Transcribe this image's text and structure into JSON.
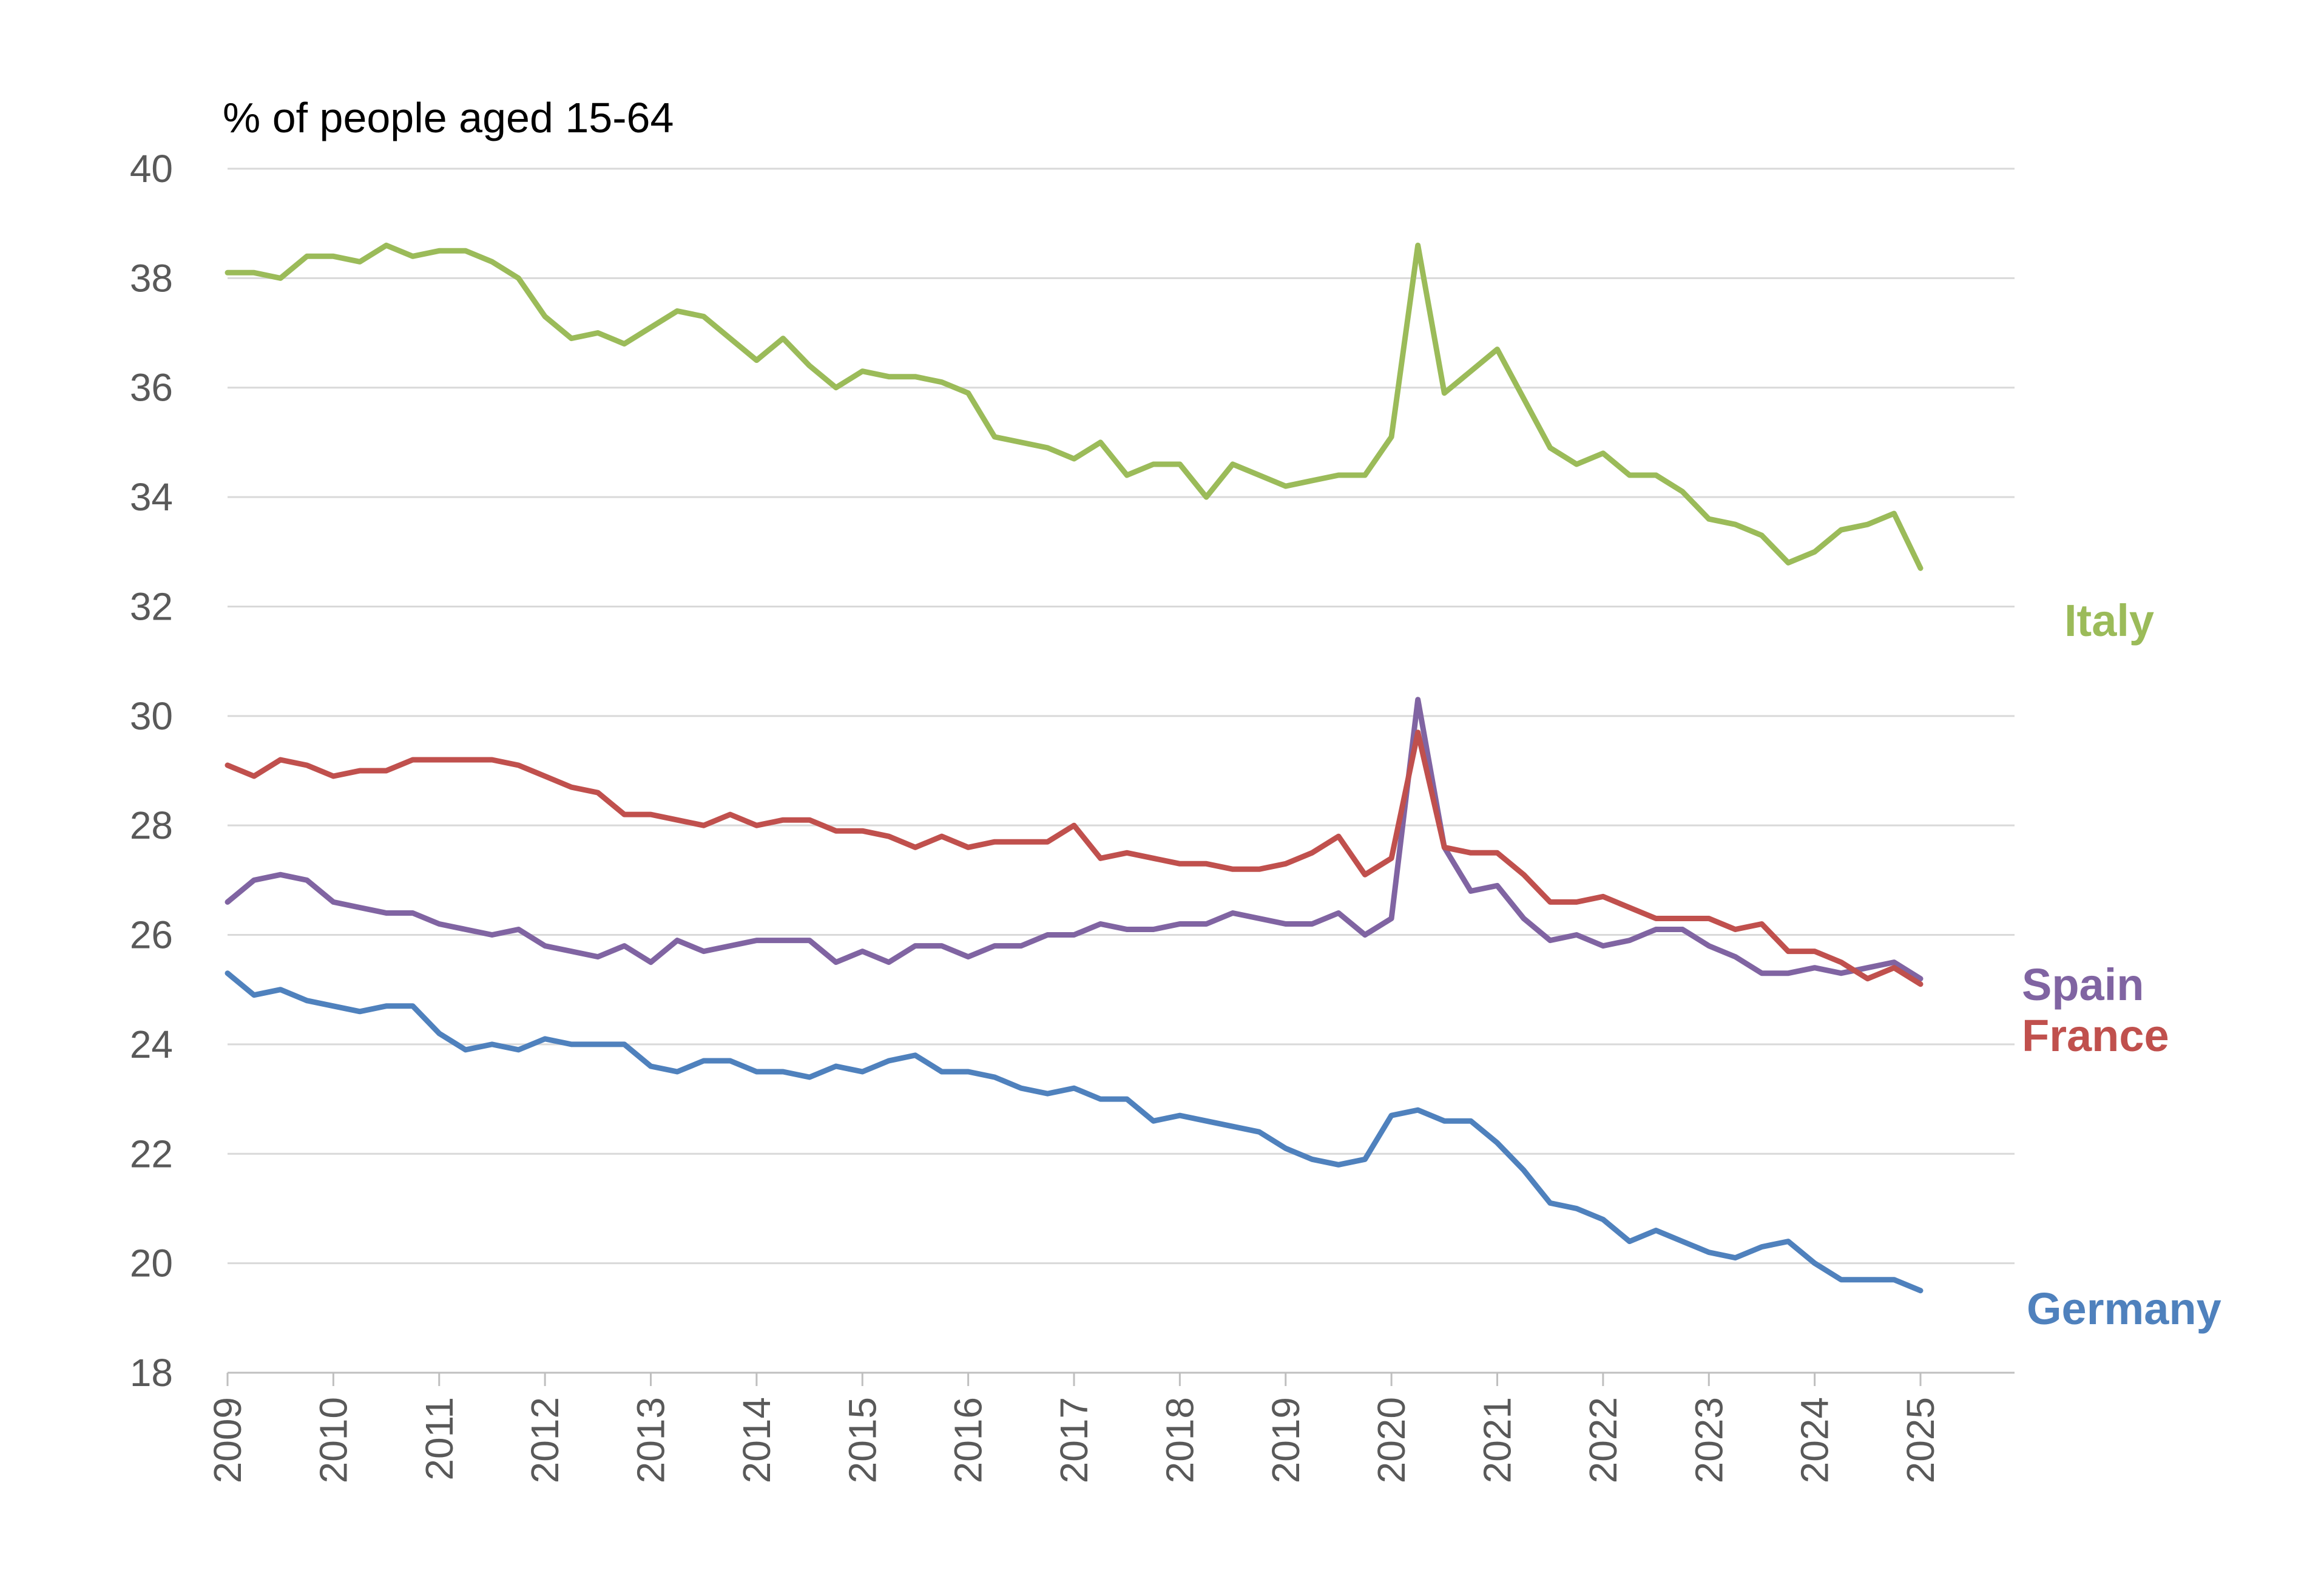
{
  "chart_data": {
    "type": "line",
    "title": "",
    "ylabel": "% of people aged 15-64",
    "xlabel": "",
    "ylim": [
      18,
      40
    ],
    "yticks": [
      "18",
      "20",
      "22",
      "24",
      "26",
      "28",
      "30",
      "32",
      "34",
      "36",
      "38",
      "40"
    ],
    "xlim": [
      2009,
      2025.83
    ],
    "xticks": [
      "2009",
      "2010",
      "2011",
      "2012",
      "2013",
      "2014",
      "2015",
      "2016",
      "2017",
      "2018",
      "2019",
      "2020",
      "2021",
      "2022",
      "2023",
      "2024",
      "2025"
    ],
    "grid": true,
    "legend": "inline labels at right end of each line",
    "series": [
      {
        "name": "Italy",
        "color": "#9bbb59",
        "start": 2009,
        "step": 0.25,
        "values": [
          38.1,
          38.1,
          38.0,
          38.4,
          38.4,
          38.3,
          38.6,
          38.4,
          38.5,
          38.5,
          38.3,
          38.0,
          37.3,
          36.9,
          37.0,
          36.8,
          37.1,
          37.4,
          37.3,
          36.9,
          36.5,
          36.9,
          36.4,
          36.0,
          36.3,
          36.2,
          36.2,
          36.1,
          35.9,
          35.1,
          35.0,
          34.9,
          34.7,
          35.0,
          34.4,
          34.6,
          34.6,
          34.0,
          34.6,
          34.4,
          34.2,
          34.3,
          34.4,
          34.4,
          35.1,
          38.6,
          35.9,
          36.3,
          36.7,
          35.8,
          34.9,
          34.6,
          34.8,
          34.4,
          34.4,
          34.1,
          33.6,
          33.5,
          33.3,
          32.8,
          33.0,
          33.4,
          33.5,
          33.7,
          32.7
        ]
      },
      {
        "name": "Spain",
        "color": "#8064a2",
        "start": 2009,
        "step": 0.25,
        "values": [
          26.6,
          27.0,
          27.1,
          27.0,
          26.6,
          26.5,
          26.4,
          26.4,
          26.2,
          26.1,
          26.0,
          26.1,
          25.8,
          25.7,
          25.6,
          25.8,
          25.5,
          25.9,
          25.7,
          25.8,
          25.9,
          25.9,
          25.9,
          25.5,
          25.7,
          25.5,
          25.8,
          25.8,
          25.6,
          25.8,
          25.8,
          26.0,
          26.0,
          26.2,
          26.1,
          26.1,
          26.2,
          26.2,
          26.4,
          26.3,
          26.2,
          26.2,
          26.4,
          26.0,
          26.3,
          30.3,
          27.6,
          26.8,
          26.9,
          26.3,
          25.9,
          26.0,
          25.8,
          25.9,
          26.1,
          26.1,
          25.8,
          25.6,
          25.3,
          25.3,
          25.4,
          25.3,
          25.4,
          25.5,
          25.2
        ]
      },
      {
        "name": "France",
        "color": "#c0504d",
        "start": 2009,
        "step": 0.25,
        "values": [
          29.1,
          28.9,
          29.2,
          29.1,
          28.9,
          29.0,
          29.0,
          29.2,
          29.2,
          29.2,
          29.2,
          29.1,
          28.9,
          28.7,
          28.6,
          28.2,
          28.2,
          28.1,
          28.0,
          28.2,
          28.0,
          28.1,
          28.1,
          27.9,
          27.9,
          27.8,
          27.6,
          27.8,
          27.6,
          27.7,
          27.7,
          27.7,
          28.0,
          27.4,
          27.5,
          27.4,
          27.3,
          27.3,
          27.2,
          27.2,
          27.3,
          27.5,
          27.8,
          27.1,
          27.4,
          29.7,
          27.6,
          27.5,
          27.5,
          27.1,
          26.6,
          26.6,
          26.7,
          26.5,
          26.3,
          26.3,
          26.3,
          26.1,
          26.2,
          25.7,
          25.7,
          25.5,
          25.2,
          25.4,
          25.1
        ]
      },
      {
        "name": "Germany",
        "color": "#4f81bd",
        "start": 2009,
        "step": 0.25,
        "values": [
          25.3,
          24.9,
          25.0,
          24.8,
          24.7,
          24.6,
          24.7,
          24.7,
          24.2,
          23.9,
          24.0,
          23.9,
          24.1,
          24.0,
          24.0,
          24.0,
          23.6,
          23.5,
          23.7,
          23.7,
          23.5,
          23.5,
          23.4,
          23.6,
          23.5,
          23.7,
          23.8,
          23.5,
          23.5,
          23.4,
          23.2,
          23.1,
          23.2,
          23.0,
          23.0,
          22.6,
          22.7,
          22.6,
          22.5,
          22.4,
          22.1,
          21.9,
          21.8,
          21.9,
          22.7,
          22.8,
          22.6,
          22.6,
          22.2,
          21.7,
          21.1,
          21.0,
          20.8,
          20.4,
          20.6,
          20.4,
          20.2,
          20.1,
          20.3,
          20.4,
          20.0,
          19.7,
          19.7,
          19.7,
          19.5
        ]
      }
    ]
  }
}
